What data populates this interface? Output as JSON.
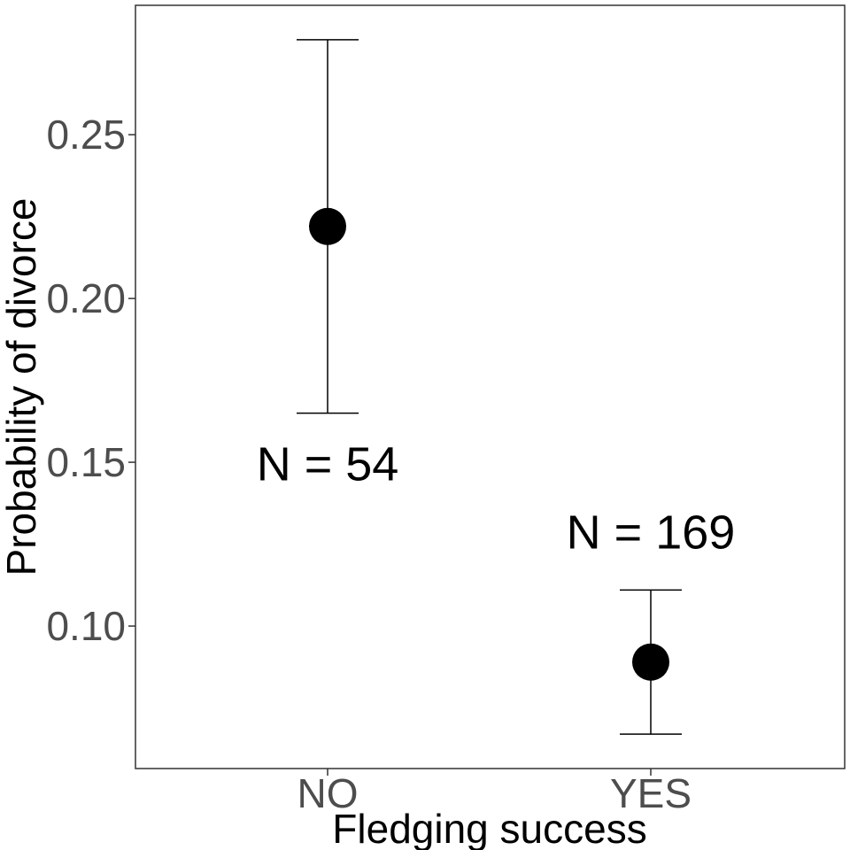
{
  "chart_data": {
    "type": "scatter",
    "xlabel": "Fledging success",
    "ylabel": "Probability of divorce",
    "categories": [
      "NO",
      "YES"
    ],
    "points": [
      {
        "category": "NO",
        "value": 0.222,
        "lower": 0.165,
        "upper": 0.279,
        "annotation": "N = 54"
      },
      {
        "category": "YES",
        "value": 0.089,
        "lower": 0.067,
        "upper": 0.111,
        "annotation": "N = 169"
      }
    ],
    "yticks": [
      "0.10",
      "0.15",
      "0.20",
      "0.25"
    ],
    "ylim": [
      0.0565,
      0.2895
    ],
    "grid": false,
    "colors": {
      "point": "#000000",
      "tick_text": "#4d4d4d",
      "frame": "#333333"
    }
  }
}
